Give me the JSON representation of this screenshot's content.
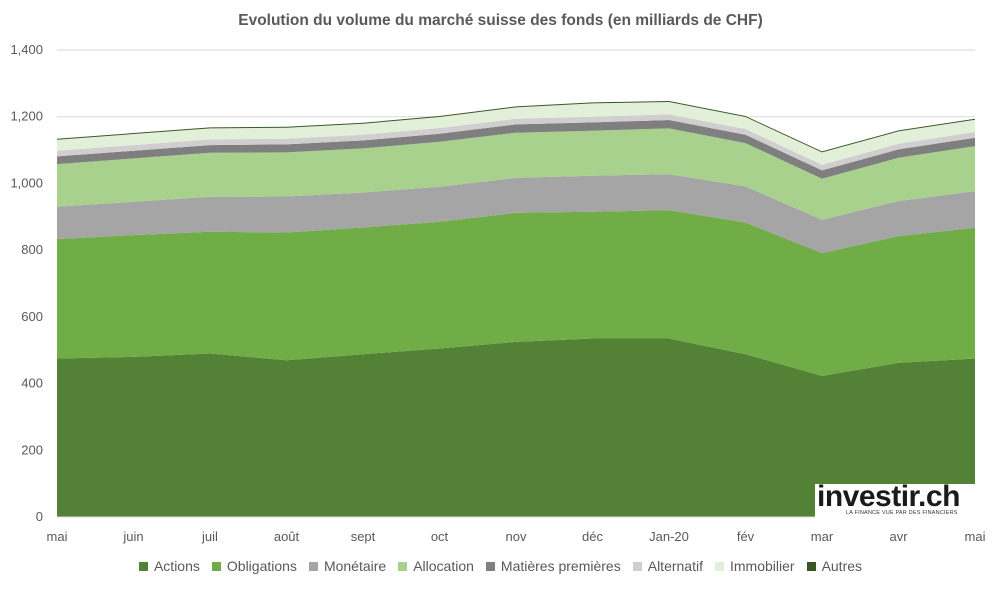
{
  "chart_data": {
    "type": "area",
    "stacked": true,
    "title": "Evolution du volume du marché suisse des fonds (en milliards de CHF)",
    "xlabel": "",
    "ylabel": "",
    "categories": [
      "mai",
      "juin",
      "juil",
      "août",
      "sept",
      "oct",
      "nov",
      "déc",
      "Jan-20",
      "fév",
      "mar",
      "avr",
      "mai"
    ],
    "ylim": [
      0,
      1400
    ],
    "yticks": [
      "0",
      "200",
      "400",
      "600",
      "800",
      "1,000",
      "1,200",
      "1,400"
    ],
    "grid": true,
    "legend_position": "bottom",
    "series": [
      {
        "name": "Actions",
        "color": "#538135",
        "values": [
          475,
          480,
          490,
          470,
          488,
          505,
          525,
          535,
          535,
          488,
          423,
          462,
          475
        ]
      },
      {
        "name": "Obligations",
        "color": "#70ad47",
        "values": [
          358,
          365,
          365,
          383,
          380,
          380,
          387,
          380,
          385,
          395,
          368,
          380,
          392
        ]
      },
      {
        "name": "Monétaire",
        "color": "#a5a5a5",
        "values": [
          97,
          100,
          105,
          108,
          105,
          105,
          105,
          108,
          108,
          108,
          100,
          105,
          110
        ]
      },
      {
        "name": "Allocation",
        "color": "#a9d18e",
        "values": [
          128,
          130,
          132,
          132,
          132,
          135,
          135,
          135,
          137,
          130,
          123,
          130,
          135
        ]
      },
      {
        "name": "Matières premières",
        "color": "#7f7f7f",
        "values": [
          23,
          23,
          23,
          24,
          24,
          24,
          25,
          25,
          25,
          25,
          25,
          25,
          25
        ]
      },
      {
        "name": "Alternatif",
        "color": "#d0cece",
        "values": [
          17,
          17,
          17,
          17,
          17,
          17,
          17,
          17,
          17,
          17,
          17,
          17,
          17
        ]
      },
      {
        "name": "Immobilier",
        "color": "#e2efd9",
        "values": [
          33,
          33,
          33,
          33,
          33,
          33,
          34,
          40,
          37,
          36,
          37,
          37,
          37
        ]
      },
      {
        "name": "Autres",
        "color": "#385723",
        "values": [
          3,
          3,
          3,
          3,
          3,
          3,
          3,
          3,
          3,
          3,
          3,
          3,
          3
        ]
      }
    ]
  },
  "logo": {
    "brand": "investir.ch",
    "tagline": "LA FINANCE VUE PAR DES FINANCIERS"
  }
}
